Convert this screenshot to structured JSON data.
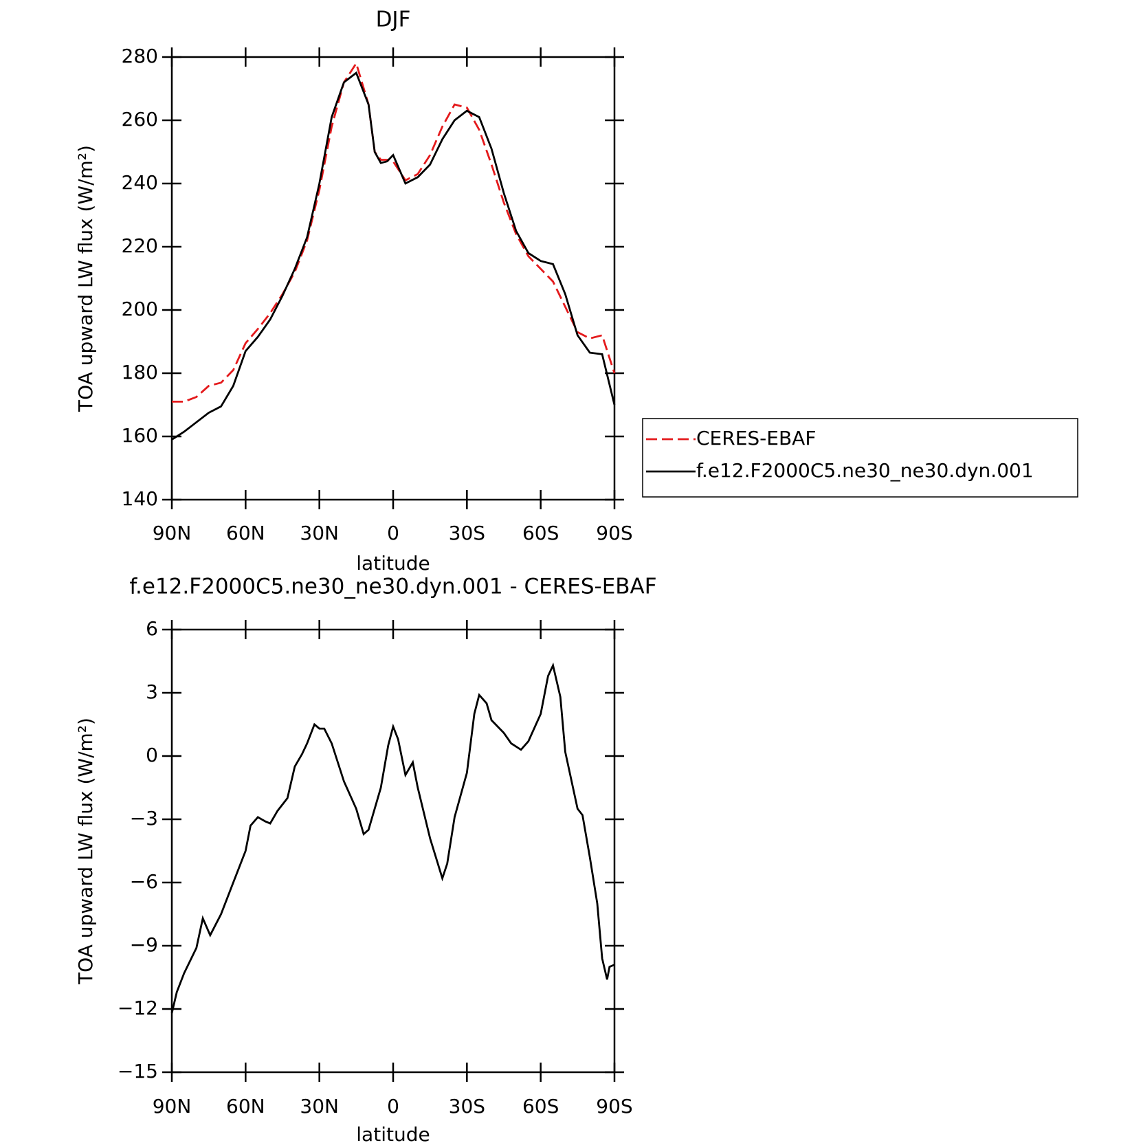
{
  "chart_data": [
    {
      "type": "line",
      "title": "DJF",
      "xlabel": "latitude",
      "ylabel": "TOA upward LW flux (W/m²)",
      "x": [
        90,
        85,
        80,
        75,
        70,
        65,
        60,
        55,
        50,
        45,
        40,
        35,
        30,
        25,
        20,
        15,
        10,
        7.5,
        5,
        2.5,
        0,
        -5,
        -10,
        -15,
        -20,
        -25,
        -30,
        -35,
        -40,
        -45,
        -50,
        -55,
        -60,
        -65,
        -70,
        -75,
        -80,
        -85,
        -90
      ],
      "xlim": [
        90,
        -90
      ],
      "xticks": [
        {
          "value": 90,
          "label": "90N"
        },
        {
          "value": 60,
          "label": "60N"
        },
        {
          "value": 30,
          "label": "30N"
        },
        0,
        {
          "value": -30,
          "label": "30S"
        },
        {
          "value": -60,
          "label": "60S"
        },
        {
          "value": -90,
          "label": "90S"
        }
      ],
      "ylim": [
        140,
        280
      ],
      "yticks": [
        140,
        160,
        180,
        200,
        220,
        240,
        260,
        280
      ],
      "legend": "right",
      "series": [
        {
          "name": "CERES-EBAF",
          "color": "#e41a1c",
          "dashed": true,
          "values": [
            171,
            171,
            172.5,
            176,
            177,
            181,
            189.5,
            194,
            199,
            205,
            212,
            222,
            238,
            258,
            272,
            278,
            265,
            250,
            247.5,
            247.5,
            247,
            241,
            243,
            249,
            258,
            265,
            264,
            257,
            246,
            234,
            224,
            217,
            213,
            209,
            201,
            193,
            191,
            192,
            180
          ]
        },
        {
          "name": "f.e12.F2000C5.ne30_ne30.dyn.001",
          "color": "#000000",
          "dashed": false,
          "values": [
            159,
            161.5,
            164.5,
            167.5,
            169.5,
            176,
            187,
            191.5,
            197,
            204.5,
            213,
            223,
            240,
            261,
            272,
            275,
            265,
            250,
            246.5,
            247,
            249,
            240,
            242,
            246,
            254,
            260,
            263,
            261,
            251,
            237,
            225,
            218,
            215.5,
            214.5,
            205,
            192,
            186.5,
            186,
            170
          ]
        }
      ]
    },
    {
      "type": "line",
      "title": "f.e12.F2000C5.ne30_ne30.dyn.001 - CERES-EBAF",
      "xlabel": "latitude",
      "ylabel": "TOA upward LW flux (W/m²)",
      "x": [
        90,
        88,
        85,
        80,
        77.4,
        74.4,
        70,
        65,
        60,
        58,
        55,
        52,
        50,
        47,
        43,
        40,
        37,
        35,
        32,
        30,
        28,
        25,
        20,
        15,
        12,
        10,
        5,
        2,
        0,
        -2,
        -5,
        -8,
        -10,
        -15,
        -20,
        -22,
        -25,
        -30,
        -33,
        -35,
        -38,
        -40,
        -45,
        -48,
        -52,
        -55,
        -60,
        -63,
        -65,
        -68,
        -70,
        -75,
        -77,
        -80,
        -83,
        -85,
        -87,
        -88,
        -90
      ],
      "xlim": [
        90,
        -90
      ],
      "xticks": [
        {
          "value": 90,
          "label": "90N"
        },
        {
          "value": 60,
          "label": "60N"
        },
        {
          "value": 30,
          "label": "30N"
        },
        0,
        {
          "value": -30,
          "label": "30S"
        },
        {
          "value": -60,
          "label": "60S"
        },
        {
          "value": -90,
          "label": "90S"
        }
      ],
      "ylim": [
        -15,
        6
      ],
      "yticks": [
        {
          "value": -15,
          "label": "−15"
        },
        {
          "value": -12,
          "label": "−12"
        },
        {
          "value": -9,
          "label": "−9"
        },
        {
          "value": -6,
          "label": "−6"
        },
        {
          "value": -3,
          "label": "−3"
        },
        0,
        3,
        6
      ],
      "series": [
        {
          "color": "#000000",
          "dashed": false,
          "values": [
            -12.2,
            -11.2,
            -10.3,
            -9.1,
            -7.7,
            -8.5,
            -7.5,
            -6.0,
            -4.5,
            -3.3,
            -2.9,
            -3.1,
            -3.2,
            -2.6,
            -2.0,
            -0.5,
            0.1,
            0.6,
            1.5,
            1.3,
            1.3,
            0.6,
            -1.2,
            -2.5,
            -3.7,
            -3.5,
            -1.5,
            0.5,
            1.4,
            0.8,
            -0.9,
            -0.3,
            -1.5,
            -3.9,
            -5.8,
            -5.1,
            -2.9,
            -0.8,
            2.0,
            2.9,
            2.5,
            1.7,
            1.1,
            0.6,
            0.3,
            0.7,
            2.0,
            3.8,
            4.3,
            2.8,
            0.2,
            -2.5,
            -2.8,
            -4.8,
            -7.0,
            -9.6,
            -10.6,
            -10.0,
            -9.9
          ]
        }
      ]
    }
  ]
}
